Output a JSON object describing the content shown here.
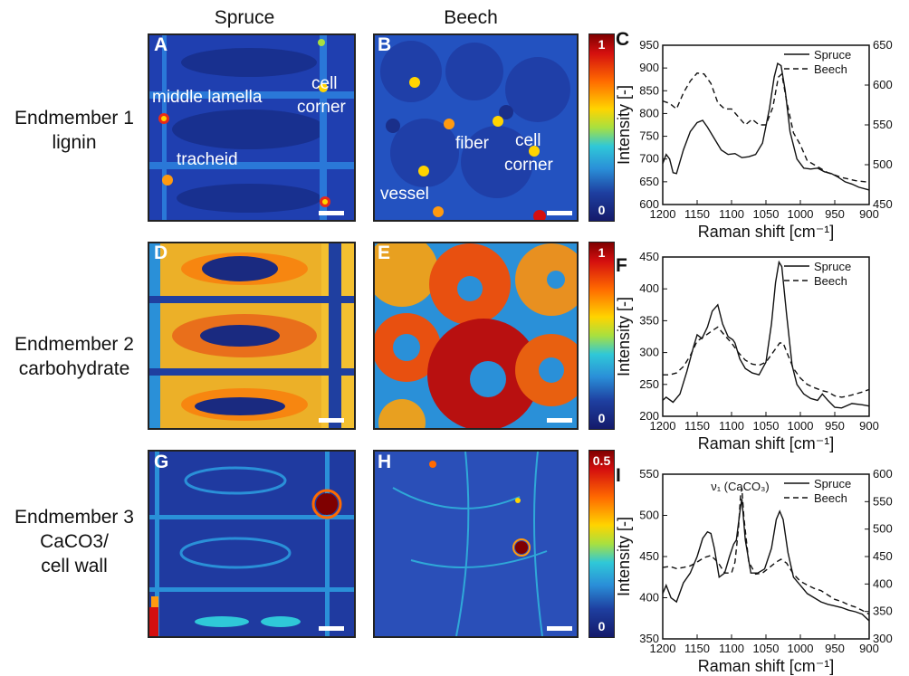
{
  "figure": {
    "column_headers": [
      "Spruce",
      "Beech"
    ],
    "rows": [
      {
        "line1": "Endmember 1",
        "line2": "lignin",
        "line3": ""
      },
      {
        "line1": "Endmember 2",
        "line2": "carbohydrate",
        "line3": ""
      },
      {
        "line1": "Endmember 3",
        "line2": "CaCO3/",
        "line3": "cell wall"
      }
    ],
    "panel_letters": [
      "A",
      "B",
      "C",
      "D",
      "E",
      "F",
      "G",
      "H",
      "I"
    ],
    "annotations_A": [
      "middle lamella",
      "cell",
      "corner",
      "tracheid"
    ],
    "annotations_B": [
      "fiber",
      "cell",
      "corner",
      "vessel"
    ],
    "colorbars": [
      {
        "max": "1",
        "min": "0"
      },
      {
        "max": "1",
        "min": "0"
      },
      {
        "max": "0.5",
        "min": "0"
      }
    ],
    "colormap_colors": [
      "#7f0000",
      "#d40f0f",
      "#ff6a00",
      "#ffd400",
      "#a8e040",
      "#2fc8d8",
      "#2a8fd8",
      "#1e3fa0",
      "#141a6a"
    ]
  },
  "chart_data": [
    {
      "type": "line",
      "panel": "C",
      "xlabel": "Raman shift [cm⁻¹]",
      "ylabel": "Intensity [-]",
      "xlim": [
        1200,
        900
      ],
      "ylim": [
        600,
        950
      ],
      "y2lim": [
        450,
        650
      ],
      "xticks": [
        1200,
        1150,
        1100,
        1050,
        1000,
        950,
        900
      ],
      "yticks": [
        600,
        650,
        700,
        750,
        800,
        850,
        900,
        950
      ],
      "y2ticks": [
        450,
        500,
        550,
        600,
        650
      ],
      "legend_placement": "top-right",
      "series": [
        {
          "name": "Spruce",
          "style": "solid",
          "axis": "left",
          "x": [
            1200,
            1195,
            1190,
            1185,
            1180,
            1170,
            1160,
            1150,
            1142,
            1135,
            1125,
            1115,
            1105,
            1095,
            1085,
            1075,
            1065,
            1055,
            1045,
            1038,
            1033,
            1028,
            1022,
            1015,
            1005,
            995,
            985,
            975,
            965,
            955,
            945,
            935,
            925,
            915,
            900
          ],
          "y": [
            690,
            710,
            700,
            670,
            668,
            720,
            760,
            780,
            785,
            770,
            745,
            720,
            710,
            712,
            703,
            705,
            710,
            735,
            810,
            880,
            910,
            905,
            850,
            760,
            700,
            680,
            678,
            680,
            672,
            668,
            660,
            650,
            645,
            638,
            632
          ]
        },
        {
          "name": "Beech",
          "style": "dashed",
          "axis": "right",
          "x": [
            1200,
            1190,
            1180,
            1170,
            1160,
            1150,
            1140,
            1130,
            1120,
            1110,
            1100,
            1090,
            1080,
            1070,
            1060,
            1050,
            1040,
            1032,
            1027,
            1020,
            1010,
            1000,
            990,
            980,
            970,
            960,
            950,
            940,
            930,
            920,
            900
          ],
          "y": [
            580,
            577,
            570,
            590,
            605,
            615,
            614,
            602,
            578,
            570,
            570,
            560,
            550,
            557,
            550,
            550,
            572,
            610,
            614,
            580,
            540,
            525,
            505,
            500,
            495,
            490,
            487,
            484,
            482,
            480,
            478
          ]
        }
      ]
    },
    {
      "type": "line",
      "panel": "F",
      "xlabel": "Raman shift [cm⁻¹]",
      "ylabel": "Intensity [-]",
      "xlim": [
        1200,
        900
      ],
      "ylim": [
        200,
        450
      ],
      "xticks": [
        1200,
        1150,
        1100,
        1050,
        1000,
        950,
        900
      ],
      "yticks": [
        200,
        250,
        300,
        350,
        400,
        450
      ],
      "legend_placement": "top-right",
      "series": [
        {
          "name": "Spruce",
          "style": "solid",
          "axis": "left",
          "x": [
            1200,
            1195,
            1185,
            1175,
            1165,
            1155,
            1150,
            1143,
            1135,
            1128,
            1120,
            1113,
            1105,
            1098,
            1095,
            1088,
            1080,
            1070,
            1060,
            1050,
            1042,
            1036,
            1031,
            1027,
            1020,
            1012,
            1005,
            995,
            985,
            975,
            968,
            960,
            950,
            940,
            925,
            910,
            900
          ],
          "y": [
            225,
            230,
            222,
            235,
            270,
            310,
            328,
            322,
            340,
            365,
            375,
            345,
            325,
            320,
            315,
            290,
            275,
            268,
            265,
            285,
            345,
            410,
            442,
            435,
            360,
            280,
            250,
            235,
            228,
            225,
            235,
            225,
            214,
            213,
            220,
            218,
            216
          ]
        },
        {
          "name": "Beech",
          "style": "dashed",
          "axis": "left",
          "x": [
            1200,
            1190,
            1180,
            1170,
            1160,
            1150,
            1140,
            1130,
            1120,
            1110,
            1100,
            1090,
            1080,
            1070,
            1060,
            1050,
            1040,
            1030,
            1025,
            1018,
            1010,
            1000,
            990,
            980,
            968,
            960,
            950,
            940,
            930,
            920,
            910,
            900
          ],
          "y": [
            265,
            265,
            268,
            278,
            295,
            318,
            325,
            333,
            340,
            327,
            315,
            300,
            288,
            282,
            280,
            285,
            300,
            315,
            315,
            296,
            275,
            260,
            250,
            245,
            240,
            238,
            232,
            230,
            232,
            235,
            238,
            242
          ]
        }
      ]
    },
    {
      "type": "line",
      "panel": "I",
      "xlabel": "Raman shift [cm⁻¹]",
      "ylabel": "Intensity [-]",
      "xlim": [
        1200,
        900
      ],
      "ylim": [
        350,
        550
      ],
      "y2lim": [
        300,
        600
      ],
      "xticks": [
        1200,
        1150,
        1100,
        1050,
        1000,
        950,
        900
      ],
      "yticks": [
        350,
        400,
        450,
        500,
        550
      ],
      "y2ticks": [
        300,
        350,
        400,
        450,
        500,
        550,
        600
      ],
      "legend_placement": "top-right",
      "annotation": "ν₁ (CaCO₃)",
      "series": [
        {
          "name": "Spruce",
          "style": "solid",
          "axis": "left",
          "x": [
            1200,
            1195,
            1188,
            1180,
            1170,
            1160,
            1150,
            1142,
            1135,
            1130,
            1125,
            1118,
            1110,
            1103,
            1097,
            1093,
            1090,
            1087,
            1085,
            1080,
            1072,
            1062,
            1052,
            1042,
            1035,
            1030,
            1025,
            1018,
            1010,
            1000,
            990,
            980,
            970,
            960,
            950,
            940,
            930,
            920,
            910,
            900
          ],
          "y": [
            405,
            415,
            400,
            395,
            418,
            430,
            450,
            472,
            480,
            478,
            460,
            425,
            430,
            450,
            465,
            470,
            490,
            510,
            520,
            470,
            430,
            430,
            435,
            460,
            495,
            505,
            495,
            455,
            425,
            415,
            405,
            400,
            395,
            392,
            390,
            388,
            385,
            383,
            380,
            372
          ]
        },
        {
          "name": "Beech",
          "style": "dashed",
          "axis": "right",
          "x": [
            1200,
            1190,
            1180,
            1170,
            1160,
            1150,
            1140,
            1130,
            1120,
            1110,
            1100,
            1095,
            1090,
            1087,
            1085,
            1082,
            1075,
            1065,
            1055,
            1045,
            1035,
            1028,
            1020,
            1010,
            1000,
            990,
            980,
            970,
            960,
            950,
            940,
            930,
            920,
            910,
            900
          ],
          "y": [
            430,
            432,
            428,
            430,
            433,
            440,
            448,
            452,
            440,
            420,
            420,
            440,
            500,
            560,
            575,
            520,
            440,
            418,
            420,
            430,
            440,
            445,
            438,
            418,
            405,
            398,
            392,
            388,
            380,
            372,
            368,
            362,
            358,
            352,
            345
          ]
        }
      ]
    }
  ]
}
